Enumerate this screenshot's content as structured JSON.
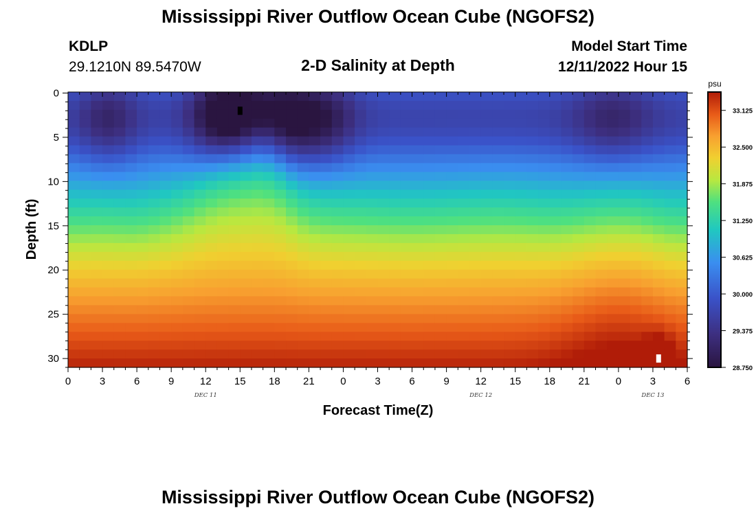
{
  "header": {
    "title": "Mississippi River Outflow Ocean Cube (NGOFS2)",
    "station": "KDLP",
    "coords": "29.1210N  89.5470W",
    "subtitle": "2-D Salinity at Depth",
    "model_start_label": "Model Start Time",
    "model_start_value": "12/11/2022 Hour 15"
  },
  "footer": {
    "title": "Mississippi River Outflow Ocean Cube (NGOFS2)"
  },
  "chart_data": {
    "type": "heatmap",
    "variable": "Salinity",
    "units": "psu",
    "xlabel": "Forecast Time(Z)",
    "ylabel": "Depth (ft)",
    "x_hours": [
      0,
      54
    ],
    "x_tick_labels": [
      "0",
      "3",
      "6",
      "9",
      "12",
      "15",
      "18",
      "21",
      "0",
      "3",
      "6",
      "9",
      "12",
      "15",
      "18",
      "21",
      "0",
      "3",
      "6"
    ],
    "date_labels": [
      {
        "text": "DEC 11",
        "hour": 12
      },
      {
        "text": "DEC 12",
        "hour": 36
      },
      {
        "text": "DEC 13",
        "hour": 51
      }
    ],
    "y_range": [
      0,
      31
    ],
    "y_inverted": true,
    "y_tick_labels": [
      "0",
      "5",
      "10",
      "15",
      "20",
      "25",
      "30"
    ],
    "colorbar": {
      "min": 28.75,
      "max": 33.4375,
      "labels": [
        "33.125",
        "32.500",
        "31.875",
        "31.250",
        "30.625",
        "30.000",
        "29.375",
        "28.750"
      ]
    },
    "features": [
      {
        "desc": "minimum marker",
        "hour": 15,
        "depth": 2
      },
      {
        "desc": "maximum marker",
        "hour": 51.5,
        "depth": 30
      }
    ]
  }
}
